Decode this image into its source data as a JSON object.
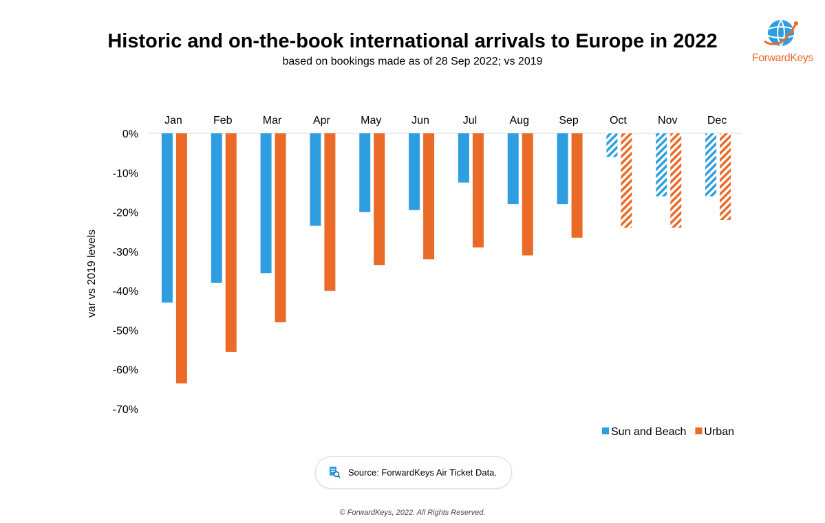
{
  "header": {
    "title": "Historic and on-the-book international arrivals to Europe in 2022",
    "subtitle": "based on bookings made as of 28 Sep 2022; vs 2019"
  },
  "logo": {
    "text": "ForwardKeys"
  },
  "source": {
    "text": "Source: ForwardKeys Air Ticket Data."
  },
  "footer": {
    "copyright": "© ForwardKeys, 2022. All Rights Reserved."
  },
  "colors": {
    "sun_and_beach": "#2e9ee0",
    "urban": "#ea6a28"
  },
  "chart_data": {
    "type": "bar",
    "title": "Historic and on-the-book international arrivals to Europe in 2022",
    "subtitle": "based on bookings made as of 28 Sep 2022; vs 2019",
    "xlabel": "",
    "ylabel": "var vs 2019 levels",
    "categories": [
      "Jan",
      "Feb",
      "Mar",
      "Apr",
      "May",
      "Jun",
      "Jul",
      "Aug",
      "Sep",
      "Oct",
      "Nov",
      "Dec"
    ],
    "ylim": [
      -70,
      0
    ],
    "yticks": [
      0,
      -10,
      -20,
      -30,
      -40,
      -50,
      -60,
      -70
    ],
    "ytick_labels": [
      "0%",
      "-10%",
      "-20%",
      "-30%",
      "-40%",
      "-50%",
      "-60%",
      "-70%"
    ],
    "forecast_categories": [
      "Oct",
      "Nov",
      "Dec"
    ],
    "series": [
      {
        "name": "Sun and Beach",
        "color": "#2e9ee0",
        "values": [
          -43,
          -38,
          -35.5,
          -23.5,
          -20,
          -19.5,
          -12.5,
          -18,
          -18,
          -6,
          -16,
          -16
        ]
      },
      {
        "name": "Urban",
        "color": "#ea6a28",
        "values": [
          -63.5,
          -55.5,
          -48,
          -40,
          -33.5,
          -32,
          -29,
          -31,
          -26.5,
          -24,
          -24,
          -22
        ]
      }
    ],
    "legend": [
      "Sun and Beach",
      "Urban"
    ],
    "legend_position": "bottom-right",
    "grid": false
  }
}
